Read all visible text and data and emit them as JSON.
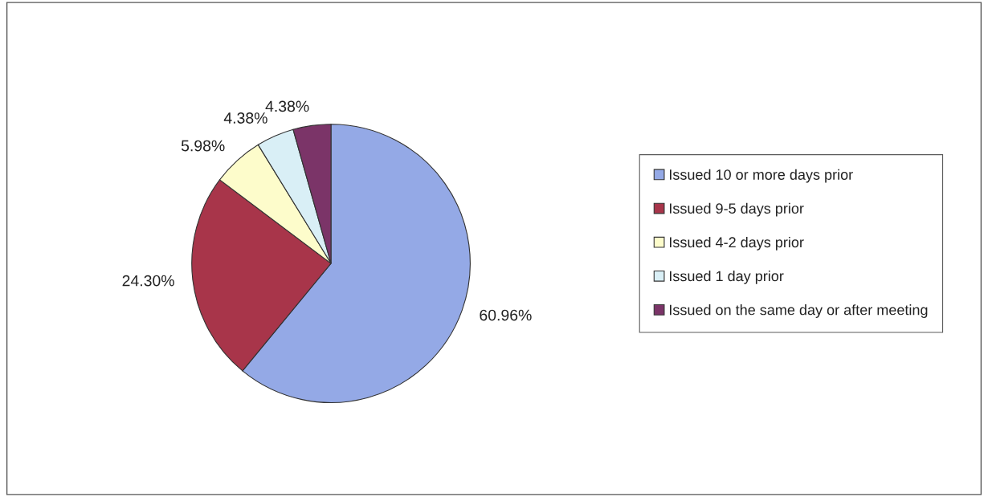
{
  "chart_data": {
    "type": "pie",
    "categories": [
      "Issued 10 or more days prior",
      "Issued 9-5 days prior",
      "Issued 4-2 days prior",
      "Issued 1 day prior",
      "Issued on the same day or after meeting"
    ],
    "values": [
      60.96,
      24.3,
      5.98,
      4.38,
      4.38
    ],
    "value_labels": [
      "60.96%",
      "24.30%",
      "5.98%",
      "4.38%",
      "4.38%"
    ],
    "colors": [
      "#94a9e6",
      "#a8354a",
      "#fdfccb",
      "#d9eff6",
      "#7b3468"
    ],
    "legend": "right"
  }
}
